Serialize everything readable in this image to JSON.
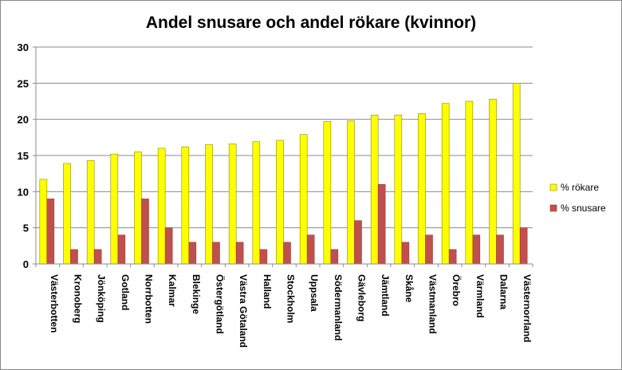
{
  "chart_data": {
    "type": "bar",
    "title": "Andel snusare och andel rökare (kvinnor)",
    "xlabel": "",
    "ylabel": "",
    "ylim": [
      0,
      30
    ],
    "yticks": [
      0,
      5,
      10,
      15,
      20,
      25,
      30
    ],
    "grid": true,
    "legend_position": "right",
    "categories": [
      "Västerbotten",
      "Kronoberg",
      "Jönköping",
      "Gotland",
      "Norrbotten",
      "Kalmar",
      "Blekinge",
      "Östergötland",
      "Västra Götaland",
      "Halland",
      "Stockholm",
      "Uppsala",
      "Södermanland",
      "Gävleborg",
      "Jämtland",
      "Skåne",
      "Västmanland",
      "Örebro",
      "Värmland",
      "Dalarna",
      "Västernorrland"
    ],
    "series": [
      {
        "name": "% rökare",
        "color": "#ffff00",
        "values": [
          11.7,
          13.9,
          14.3,
          15.2,
          15.5,
          16.0,
          16.2,
          16.5,
          16.6,
          16.9,
          17.1,
          17.9,
          19.7,
          19.8,
          20.6,
          20.6,
          20.8,
          22.2,
          22.5,
          22.8,
          25.0
        ]
      },
      {
        "name": "% snusare",
        "color": "#c0504d",
        "values": [
          9,
          2,
          2,
          4,
          9,
          5,
          3,
          3,
          3,
          2,
          3,
          4,
          2,
          6,
          11,
          3,
          4,
          2,
          4,
          4,
          5
        ]
      }
    ]
  }
}
